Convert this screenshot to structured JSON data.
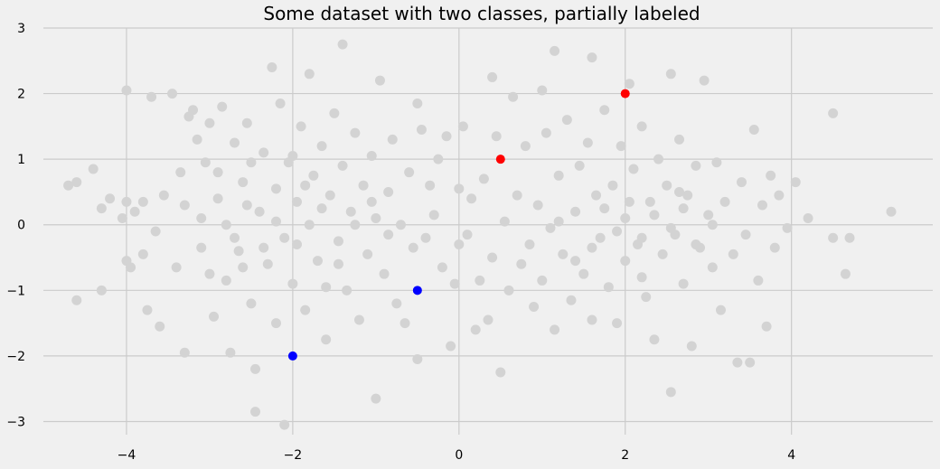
{
  "chart_data": {
    "type": "scatter",
    "title": "Some dataset with two classes, partially labeled",
    "xlabel": "",
    "ylabel": "",
    "xlim": [
      -5.0,
      5.7
    ],
    "ylim": [
      -3.2,
      3.0
    ],
    "x_ticks": [
      -4,
      -2,
      0,
      2,
      4
    ],
    "y_ticks": [
      -3,
      -2,
      -1,
      0,
      1,
      2,
      3
    ],
    "grid": true,
    "legend": "none",
    "colors": {
      "background": "#f0f0f0",
      "grid": "#cbcbcb",
      "unlabeled": "#d3d3d3",
      "class_red": "#ff0000",
      "class_blue": "#0000ff"
    },
    "series": [
      {
        "color": "#d3d3d3",
        "points": [
          [
            -4.7,
            0.6
          ],
          [
            -4.6,
            0.65
          ],
          [
            -4.6,
            -1.15
          ],
          [
            -4.4,
            0.85
          ],
          [
            -4.3,
            0.25
          ],
          [
            -4.3,
            -1.0
          ],
          [
            -4.2,
            0.4
          ],
          [
            -4.05,
            0.1
          ],
          [
            -4.0,
            2.05
          ],
          [
            -4.0,
            0.35
          ],
          [
            -4.0,
            -0.55
          ],
          [
            -3.95,
            -0.65
          ],
          [
            -3.9,
            0.2
          ],
          [
            -3.8,
            -0.45
          ],
          [
            -3.8,
            0.35
          ],
          [
            -3.75,
            -1.3
          ],
          [
            -3.7,
            1.95
          ],
          [
            -3.65,
            -0.1
          ],
          [
            -3.6,
            -1.55
          ],
          [
            -3.55,
            0.45
          ],
          [
            -3.45,
            2.0
          ],
          [
            -3.4,
            -0.65
          ],
          [
            -3.35,
            0.8
          ],
          [
            -3.3,
            -1.95
          ],
          [
            -3.3,
            0.3
          ],
          [
            -3.25,
            1.65
          ],
          [
            -3.2,
            1.75
          ],
          [
            -3.15,
            1.3
          ],
          [
            -3.1,
            -0.35
          ],
          [
            -3.05,
            0.95
          ],
          [
            -3.0,
            1.55
          ],
          [
            -3.0,
            -0.75
          ],
          [
            -2.95,
            -1.4
          ],
          [
            -2.9,
            0.4
          ],
          [
            -2.85,
            1.8
          ],
          [
            -2.8,
            0.0
          ],
          [
            -2.8,
            -0.85
          ],
          [
            -2.75,
            -1.95
          ],
          [
            -2.7,
            1.25
          ],
          [
            -2.65,
            -0.4
          ],
          [
            -2.6,
            0.65
          ],
          [
            -2.55,
            1.55
          ],
          [
            -2.5,
            -1.2
          ],
          [
            -2.5,
            0.95
          ],
          [
            -2.45,
            -2.2
          ],
          [
            -2.45,
            -2.85
          ],
          [
            -2.4,
            0.2
          ],
          [
            -2.35,
            1.1
          ],
          [
            -2.3,
            -0.6
          ],
          [
            -2.25,
            2.4
          ],
          [
            -2.2,
            0.55
          ],
          [
            -2.2,
            -1.5
          ],
          [
            -2.15,
            1.85
          ],
          [
            -2.1,
            -0.2
          ],
          [
            -2.1,
            -3.05
          ],
          [
            -2.05,
            0.95
          ],
          [
            -2.0,
            -0.9
          ],
          [
            -1.95,
            0.35
          ],
          [
            -1.9,
            1.5
          ],
          [
            -1.85,
            -1.3
          ],
          [
            -1.8,
            2.3
          ],
          [
            -1.8,
            0.0
          ],
          [
            -1.75,
            0.75
          ],
          [
            -1.7,
            -0.55
          ],
          [
            -1.65,
            1.2
          ],
          [
            -1.6,
            -1.75
          ],
          [
            -1.55,
            0.45
          ],
          [
            -1.5,
            1.7
          ],
          [
            -1.45,
            -0.25
          ],
          [
            -1.4,
            2.75
          ],
          [
            -1.4,
            0.9
          ],
          [
            -1.35,
            -1.0
          ],
          [
            -1.3,
            0.2
          ],
          [
            -1.25,
            1.4
          ],
          [
            -1.2,
            -1.45
          ],
          [
            -1.15,
            0.6
          ],
          [
            -1.1,
            -0.45
          ],
          [
            -1.05,
            1.05
          ],
          [
            -1.0,
            -2.65
          ],
          [
            -1.0,
            0.1
          ],
          [
            -0.95,
            2.2
          ],
          [
            -0.9,
            -0.75
          ],
          [
            -0.85,
            0.5
          ],
          [
            -0.8,
            1.3
          ],
          [
            -0.75,
            -1.2
          ],
          [
            -0.7,
            0.0
          ],
          [
            -0.65,
            -1.5
          ],
          [
            -0.6,
            0.8
          ],
          [
            -0.55,
            -0.35
          ],
          [
            -0.5,
            1.85
          ],
          [
            -0.5,
            -2.05
          ],
          [
            -0.45,
            1.45
          ],
          [
            -0.4,
            -0.2
          ],
          [
            -0.35,
            0.6
          ],
          [
            -0.3,
            0.15
          ],
          [
            -0.25,
            1.0
          ],
          [
            -0.2,
            -0.65
          ],
          [
            -0.15,
            1.35
          ],
          [
            -0.1,
            -1.85
          ],
          [
            -0.05,
            -0.9
          ],
          [
            0.0,
            0.55
          ],
          [
            0.0,
            -0.3
          ],
          [
            0.05,
            1.5
          ],
          [
            0.1,
            -0.15
          ],
          [
            0.15,
            0.4
          ],
          [
            0.2,
            -1.6
          ],
          [
            0.25,
            -0.85
          ],
          [
            0.3,
            0.7
          ],
          [
            0.35,
            -1.45
          ],
          [
            0.4,
            2.25
          ],
          [
            0.4,
            -0.5
          ],
          [
            0.45,
            1.35
          ],
          [
            0.5,
            -2.25
          ],
          [
            0.55,
            0.05
          ],
          [
            0.6,
            -1.0
          ],
          [
            0.65,
            1.95
          ],
          [
            0.7,
            0.45
          ],
          [
            0.75,
            -0.6
          ],
          [
            0.8,
            1.2
          ],
          [
            0.85,
            -0.3
          ],
          [
            0.9,
            -1.25
          ],
          [
            0.95,
            0.3
          ],
          [
            1.0,
            2.05
          ],
          [
            1.0,
            -0.85
          ],
          [
            1.05,
            1.4
          ],
          [
            1.1,
            -0.05
          ],
          [
            1.15,
            2.65
          ],
          [
            1.15,
            -1.6
          ],
          [
            1.2,
            0.75
          ],
          [
            1.25,
            -0.45
          ],
          [
            1.3,
            1.6
          ],
          [
            1.35,
            -1.15
          ],
          [
            1.4,
            0.2
          ],
          [
            1.45,
            0.9
          ],
          [
            1.5,
            -0.75
          ],
          [
            1.55,
            1.25
          ],
          [
            1.6,
            -1.45
          ],
          [
            1.6,
            2.55
          ],
          [
            1.65,
            0.45
          ],
          [
            1.7,
            -0.2
          ],
          [
            1.75,
            1.75
          ],
          [
            1.8,
            -0.95
          ],
          [
            1.85,
            0.6
          ],
          [
            1.9,
            -1.5
          ],
          [
            1.95,
            1.2
          ],
          [
            2.0,
            0.1
          ],
          [
            2.0,
            -0.55
          ],
          [
            2.05,
            2.15
          ],
          [
            2.1,
            0.85
          ],
          [
            2.15,
            -0.3
          ],
          [
            2.2,
            1.5
          ],
          [
            2.25,
            -1.1
          ],
          [
            2.3,
            0.35
          ],
          [
            2.35,
            -1.75
          ],
          [
            2.4,
            1.0
          ],
          [
            2.45,
            -0.45
          ],
          [
            2.5,
            0.6
          ],
          [
            2.55,
            -2.55
          ],
          [
            2.55,
            2.3
          ],
          [
            2.6,
            -0.15
          ],
          [
            2.65,
            1.3
          ],
          [
            2.7,
            -0.9
          ],
          [
            2.75,
            0.45
          ],
          [
            2.8,
            -1.85
          ],
          [
            2.85,
            0.9
          ],
          [
            2.9,
            -0.35
          ],
          [
            2.95,
            2.2
          ],
          [
            3.0,
            0.15
          ],
          [
            3.05,
            -0.65
          ],
          [
            3.1,
            0.95
          ],
          [
            3.15,
            -1.3
          ],
          [
            3.2,
            0.35
          ],
          [
            3.3,
            -0.45
          ],
          [
            3.35,
            -2.1
          ],
          [
            3.4,
            0.65
          ],
          [
            3.45,
            -0.15
          ],
          [
            3.5,
            -2.1
          ],
          [
            3.55,
            1.45
          ],
          [
            3.6,
            -0.85
          ],
          [
            3.65,
            0.3
          ],
          [
            3.7,
            -1.55
          ],
          [
            3.75,
            0.75
          ],
          [
            3.8,
            -0.35
          ],
          [
            3.85,
            0.45
          ],
          [
            3.95,
            -0.05
          ],
          [
            4.05,
            0.65
          ],
          [
            4.2,
            0.1
          ],
          [
            4.5,
            -0.2
          ],
          [
            4.5,
            1.7
          ],
          [
            4.65,
            -0.75
          ],
          [
            4.7,
            -0.2
          ],
          [
            5.2,
            0.2
          ],
          [
            -2.9,
            0.8
          ],
          [
            -2.7,
            -0.2
          ],
          [
            -2.55,
            0.3
          ],
          [
            -2.35,
            -0.35
          ],
          [
            -2.2,
            0.05
          ],
          [
            -1.95,
            -0.3
          ],
          [
            -1.85,
            0.6
          ],
          [
            -1.65,
            0.25
          ],
          [
            -1.45,
            -0.6
          ],
          [
            -1.25,
            0.0
          ],
          [
            -1.05,
            0.35
          ],
          [
            -0.85,
            -0.15
          ],
          [
            1.6,
            -0.35
          ],
          [
            1.75,
            0.25
          ],
          [
            1.9,
            -0.1
          ],
          [
            2.05,
            0.35
          ],
          [
            2.2,
            -0.2
          ],
          [
            2.35,
            0.15
          ],
          [
            2.55,
            -0.05
          ],
          [
            2.7,
            0.25
          ],
          [
            2.85,
            -0.3
          ],
          [
            3.05,
            0.0
          ],
          [
            1.4,
            -0.55
          ],
          [
            1.2,
            0.05
          ],
          [
            -3.1,
            0.1
          ],
          [
            -2.6,
            -0.65
          ],
          [
            -2.0,
            1.05
          ],
          [
            -1.6,
            -0.95
          ],
          [
            2.2,
            -0.8
          ],
          [
            2.65,
            0.5
          ]
        ]
      },
      {
        "color": "#ff0000",
        "points": [
          [
            0.5,
            1.0
          ],
          [
            2.0,
            2.0
          ]
        ]
      },
      {
        "color": "#0000ff",
        "points": [
          [
            -0.5,
            -1.0
          ],
          [
            -2.0,
            -2.0
          ]
        ]
      }
    ]
  }
}
